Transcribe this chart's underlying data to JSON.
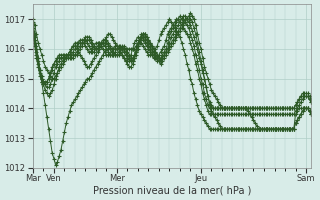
{
  "title": "",
  "xlabel": "Pression niveau de la mer( hPa )",
  "ylim": [
    1012,
    1017.5
  ],
  "yticks": [
    1012,
    1013,
    1014,
    1015,
    1016,
    1017
  ],
  "xtick_labels": [
    "Mar",
    "Ven",
    "Mer",
    "Jeu",
    "Sam"
  ],
  "xtick_positions": [
    0,
    12,
    48,
    96,
    156
  ],
  "bg_color": "#d8ece8",
  "grid_color": "#b0cfc8",
  "line_color": "#2d5a27",
  "total_points": 168,
  "series": [
    [
      1017.0,
      1016.8,
      1016.5,
      1016.2,
      1016.0,
      1015.8,
      1015.6,
      1015.4,
      1015.3,
      1015.2,
      1015.1,
      1015.0,
      1015.0,
      1015.1,
      1015.2,
      1015.3,
      1015.4,
      1015.5,
      1015.6,
      1015.7,
      1015.8,
      1015.9,
      1016.0,
      1016.1,
      1016.1,
      1016.0,
      1015.9,
      1015.8,
      1015.7,
      1015.6,
      1015.5,
      1015.4,
      1015.4,
      1015.5,
      1015.6,
      1015.7,
      1015.8,
      1015.9,
      1016.0,
      1016.1,
      1016.2,
      1016.3,
      1016.4,
      1016.5,
      1016.5,
      1016.4,
      1016.3,
      1016.2,
      1016.1,
      1016.0,
      1015.9,
      1015.8,
      1015.7,
      1015.6,
      1015.5,
      1015.4,
      1015.4,
      1015.5,
      1015.7,
      1015.9,
      1016.1,
      1016.3,
      1016.5,
      1016.5,
      1016.4,
      1016.3,
      1016.2,
      1016.1,
      1016.0,
      1015.9,
      1015.8,
      1015.7,
      1015.6,
      1015.5,
      1015.6,
      1015.7,
      1015.8,
      1015.9,
      1016.0,
      1016.1,
      1016.2,
      1016.3,
      1016.4,
      1016.5,
      1016.6,
      1016.7,
      1016.8,
      1016.9,
      1017.0,
      1017.1,
      1017.2,
      1017.1,
      1017.0,
      1016.8,
      1016.5,
      1016.2,
      1016.0,
      1015.7,
      1015.4,
      1015.2,
      1015.0,
      1014.8,
      1014.6,
      1014.5,
      1014.4,
      1014.3,
      1014.2,
      1014.1,
      1014.0,
      1014.0,
      1014.0,
      1014.0,
      1014.0,
      1014.0,
      1014.0,
      1014.0,
      1014.0,
      1014.0,
      1014.0,
      1014.0,
      1014.0,
      1014.0,
      1014.0,
      1013.9,
      1013.8,
      1013.7,
      1013.6,
      1013.5,
      1013.4,
      1013.3,
      1013.3,
      1013.3,
      1013.3,
      1013.3,
      1013.3,
      1013.3,
      1013.3,
      1013.3,
      1013.3,
      1013.3,
      1013.3,
      1013.3,
      1013.3,
      1013.3,
      1013.3,
      1013.3,
      1013.3,
      1013.3,
      1013.3,
      1013.3,
      1013.8,
      1013.9,
      1014.0,
      1014.0,
      1014.0,
      1014.0,
      1014.0,
      1014.0,
      1013.9,
      1013.8
    ],
    [
      1016.9,
      1016.5,
      1016.1,
      1015.7,
      1015.3,
      1014.9,
      1014.5,
      1014.1,
      1013.7,
      1013.3,
      1012.9,
      1012.5,
      1012.3,
      1012.1,
      1012.2,
      1012.4,
      1012.6,
      1012.9,
      1013.2,
      1013.5,
      1013.7,
      1013.9,
      1014.1,
      1014.2,
      1014.3,
      1014.4,
      1014.5,
      1014.6,
      1014.7,
      1014.8,
      1014.9,
      1015.0,
      1015.0,
      1015.1,
      1015.2,
      1015.3,
      1015.4,
      1015.5,
      1015.6,
      1015.7,
      1015.8,
      1015.9,
      1016.0,
      1016.0,
      1016.0,
      1016.0,
      1016.0,
      1016.0,
      1016.0,
      1016.0,
      1016.0,
      1016.0,
      1016.0,
      1016.0,
      1016.0,
      1016.0,
      1016.0,
      1016.0,
      1016.0,
      1016.1,
      1016.2,
      1016.3,
      1016.4,
      1016.5,
      1016.5,
      1016.4,
      1016.3,
      1016.2,
      1016.1,
      1016.0,
      1015.9,
      1015.8,
      1015.7,
      1015.6,
      1015.7,
      1015.8,
      1015.9,
      1016.0,
      1016.1,
      1016.2,
      1016.3,
      1016.4,
      1016.5,
      1016.6,
      1016.7,
      1016.8,
      1016.9,
      1017.0,
      1017.0,
      1017.0,
      1017.0,
      1016.9,
      1016.7,
      1016.5,
      1016.2,
      1015.9,
      1015.6,
      1015.3,
      1015.0,
      1014.7,
      1014.4,
      1014.1,
      1013.9,
      1013.8,
      1013.7,
      1013.6,
      1013.5,
      1013.4,
      1013.3,
      1013.3,
      1013.3,
      1013.3,
      1013.3,
      1013.3,
      1013.3,
      1013.3,
      1013.3,
      1013.3,
      1013.3,
      1013.3,
      1013.3,
      1013.3,
      1013.3,
      1013.3,
      1013.3,
      1013.3,
      1013.3,
      1013.3,
      1013.3,
      1013.3,
      1013.3,
      1013.3,
      1013.3,
      1013.3,
      1013.3,
      1013.3,
      1013.3,
      1013.3,
      1013.3,
      1013.3,
      1013.3,
      1013.3,
      1013.3,
      1013.3,
      1013.3,
      1013.3,
      1013.3,
      1013.3,
      1013.3,
      1013.3,
      1013.5,
      1013.6,
      1013.7,
      1013.8,
      1013.9,
      1014.0,
      1014.0,
      1014.0,
      1013.9,
      1013.8
    ],
    [
      1016.8,
      1016.4,
      1016.0,
      1015.7,
      1015.3,
      1015.0,
      1014.8,
      1014.6,
      1014.5,
      1014.4,
      1014.5,
      1014.6,
      1014.8,
      1015.0,
      1015.2,
      1015.4,
      1015.5,
      1015.6,
      1015.7,
      1015.8,
      1015.8,
      1015.8,
      1015.8,
      1015.8,
      1015.8,
      1015.8,
      1015.9,
      1016.0,
      1016.1,
      1016.2,
      1016.3,
      1016.3,
      1016.3,
      1016.2,
      1016.1,
      1016.0,
      1016.0,
      1016.0,
      1016.1,
      1016.2,
      1016.3,
      1016.3,
      1016.3,
      1016.2,
      1016.1,
      1016.0,
      1015.9,
      1015.8,
      1015.8,
      1015.8,
      1015.9,
      1016.0,
      1016.1,
      1016.0,
      1015.9,
      1015.8,
      1015.7,
      1015.6,
      1015.7,
      1015.8,
      1016.0,
      1016.2,
      1016.4,
      1016.5,
      1016.5,
      1016.4,
      1016.3,
      1016.2,
      1016.1,
      1016.0,
      1015.9,
      1015.8,
      1015.7,
      1015.6,
      1015.7,
      1015.8,
      1015.9,
      1016.0,
      1016.2,
      1016.4,
      1016.5,
      1016.6,
      1016.7,
      1016.8,
      1016.9,
      1017.0,
      1017.1,
      1017.1,
      1017.0,
      1016.9,
      1016.8,
      1016.6,
      1016.4,
      1016.2,
      1016.0,
      1015.7,
      1015.5,
      1015.2,
      1015.0,
      1014.7,
      1014.4,
      1014.2,
      1014.1,
      1014.0,
      1014.0,
      1014.0,
      1014.0,
      1014.0,
      1014.0,
      1014.0,
      1014.0,
      1014.0,
      1014.0,
      1014.0,
      1014.0,
      1014.0,
      1014.0,
      1014.0,
      1014.0,
      1014.0,
      1014.0,
      1014.0,
      1014.0,
      1014.0,
      1014.0,
      1014.0,
      1014.0,
      1014.0,
      1014.0,
      1014.0,
      1014.0,
      1014.0,
      1014.0,
      1014.0,
      1014.0,
      1014.0,
      1014.0,
      1014.0,
      1014.0,
      1014.0,
      1014.0,
      1014.0,
      1014.0,
      1014.0,
      1014.0,
      1014.0,
      1014.0,
      1014.0,
      1014.0,
      1014.0,
      1014.1,
      1014.2,
      1014.3,
      1014.4,
      1014.4,
      1014.4,
      1014.4,
      1014.4,
      1014.3,
      1014.2
    ],
    [
      1016.7,
      1016.3,
      1015.9,
      1015.6,
      1015.3,
      1015.1,
      1014.9,
      1014.8,
      1014.7,
      1014.7,
      1014.8,
      1015.0,
      1015.2,
      1015.4,
      1015.5,
      1015.6,
      1015.7,
      1015.7,
      1015.7,
      1015.7,
      1015.7,
      1015.7,
      1015.7,
      1015.7,
      1015.8,
      1015.9,
      1016.0,
      1016.1,
      1016.2,
      1016.3,
      1016.4,
      1016.4,
      1016.4,
      1016.3,
      1016.2,
      1016.1,
      1016.0,
      1016.0,
      1016.0,
      1016.1,
      1016.2,
      1016.2,
      1016.2,
      1016.1,
      1016.0,
      1015.9,
      1015.8,
      1015.8,
      1015.8,
      1015.9,
      1016.0,
      1016.1,
      1016.0,
      1015.9,
      1015.8,
      1015.7,
      1015.6,
      1015.6,
      1015.7,
      1015.9,
      1016.1,
      1016.3,
      1016.4,
      1016.4,
      1016.3,
      1016.2,
      1016.1,
      1016.0,
      1015.9,
      1015.8,
      1015.7,
      1015.6,
      1015.6,
      1015.7,
      1015.8,
      1015.9,
      1016.0,
      1016.2,
      1016.4,
      1016.6,
      1016.7,
      1016.8,
      1016.9,
      1017.0,
      1017.1,
      1017.0,
      1017.0,
      1016.9,
      1016.8,
      1016.7,
      1016.5,
      1016.3,
      1016.1,
      1015.8,
      1015.6,
      1015.3,
      1015.0,
      1014.8,
      1014.5,
      1014.3,
      1014.1,
      1014.0,
      1014.0,
      1014.0,
      1014.0,
      1014.0,
      1014.0,
      1014.0,
      1014.0,
      1014.0,
      1014.0,
      1014.0,
      1014.0,
      1014.0,
      1014.0,
      1014.0,
      1014.0,
      1014.0,
      1014.0,
      1014.0,
      1014.0,
      1014.0,
      1014.0,
      1014.0,
      1014.0,
      1014.0,
      1014.0,
      1014.0,
      1014.0,
      1014.0,
      1014.0,
      1014.0,
      1014.0,
      1014.0,
      1014.0,
      1014.0,
      1014.0,
      1014.0,
      1014.0,
      1014.0,
      1014.0,
      1014.0,
      1014.0,
      1014.0,
      1014.0,
      1014.0,
      1014.0,
      1014.0,
      1014.0,
      1014.0,
      1014.1,
      1014.2,
      1014.3,
      1014.4,
      1014.5,
      1014.5,
      1014.5,
      1014.5,
      1014.4,
      1014.3
    ],
    [
      1016.6,
      1016.2,
      1015.8,
      1015.5,
      1015.2,
      1015.0,
      1014.9,
      1014.9,
      1014.9,
      1015.0,
      1015.1,
      1015.3,
      1015.5,
      1015.6,
      1015.7,
      1015.8,
      1015.8,
      1015.8,
      1015.8,
      1015.8,
      1015.8,
      1015.8,
      1015.8,
      1015.9,
      1016.0,
      1016.1,
      1016.2,
      1016.3,
      1016.3,
      1016.3,
      1016.3,
      1016.2,
      1016.1,
      1016.0,
      1015.9,
      1015.9,
      1016.0,
      1016.1,
      1016.2,
      1016.2,
      1016.2,
      1016.1,
      1016.0,
      1015.9,
      1015.8,
      1015.8,
      1015.8,
      1015.9,
      1016.0,
      1016.1,
      1016.1,
      1016.0,
      1015.9,
      1015.8,
      1015.7,
      1015.6,
      1015.6,
      1015.7,
      1015.8,
      1016.0,
      1016.2,
      1016.3,
      1016.4,
      1016.3,
      1016.2,
      1016.1,
      1016.0,
      1015.9,
      1015.8,
      1015.7,
      1015.7,
      1015.7,
      1015.8,
      1015.9,
      1016.0,
      1016.1,
      1016.3,
      1016.5,
      1016.6,
      1016.7,
      1016.8,
      1016.9,
      1017.0,
      1017.0,
      1016.9,
      1016.8,
      1016.7,
      1016.6,
      1016.5,
      1016.4,
      1016.2,
      1016.0,
      1015.8,
      1015.5,
      1015.3,
      1015.0,
      1014.8,
      1014.5,
      1014.3,
      1014.1,
      1013.9,
      1013.8,
      1013.8,
      1013.8,
      1013.8,
      1013.8,
      1013.8,
      1013.8,
      1013.8,
      1013.8,
      1013.8,
      1013.8,
      1013.8,
      1013.8,
      1013.8,
      1013.8,
      1013.8,
      1013.8,
      1013.8,
      1013.8,
      1013.8,
      1013.8,
      1013.8,
      1013.8,
      1013.8,
      1013.8,
      1013.8,
      1013.8,
      1013.8,
      1013.8,
      1013.8,
      1013.8,
      1013.8,
      1013.8,
      1013.8,
      1013.8,
      1013.8,
      1013.8,
      1013.8,
      1013.8,
      1013.8,
      1013.8,
      1013.8,
      1013.8,
      1013.8,
      1013.8,
      1013.8,
      1013.8,
      1013.8,
      1013.8,
      1013.9,
      1014.0,
      1014.1,
      1014.2,
      1014.3,
      1014.4,
      1014.4,
      1014.4,
      1014.3,
      1014.2
    ],
    [
      1016.5,
      1016.1,
      1015.7,
      1015.4,
      1015.1,
      1014.9,
      1014.8,
      1014.8,
      1014.9,
      1015.0,
      1015.2,
      1015.4,
      1015.5,
      1015.6,
      1015.7,
      1015.7,
      1015.7,
      1015.7,
      1015.7,
      1015.7,
      1015.8,
      1015.9,
      1016.0,
      1016.1,
      1016.2,
      1016.2,
      1016.2,
      1016.2,
      1016.2,
      1016.2,
      1016.1,
      1016.0,
      1015.9,
      1015.9,
      1016.0,
      1016.1,
      1016.2,
      1016.2,
      1016.2,
      1016.1,
      1016.0,
      1015.9,
      1015.8,
      1015.8,
      1015.8,
      1015.9,
      1016.0,
      1016.1,
      1016.1,
      1016.0,
      1015.9,
      1015.8,
      1015.7,
      1015.6,
      1015.6,
      1015.7,
      1015.8,
      1016.0,
      1016.2,
      1016.3,
      1016.4,
      1016.3,
      1016.2,
      1016.1,
      1016.0,
      1015.9,
      1015.8,
      1015.8,
      1015.8,
      1015.9,
      1016.0,
      1016.1,
      1016.3,
      1016.5,
      1016.6,
      1016.7,
      1016.8,
      1016.9,
      1017.0,
      1016.9,
      1016.8,
      1016.7,
      1016.6,
      1016.5,
      1016.4,
      1016.2,
      1016.0,
      1015.8,
      1015.5,
      1015.3,
      1015.0,
      1014.8,
      1014.5,
      1014.3,
      1014.1,
      1013.9,
      1013.8,
      1013.7,
      1013.6,
      1013.5,
      1013.4,
      1013.3,
      1013.3,
      1013.3,
      1013.3,
      1013.3,
      1013.3,
      1013.3,
      1013.3,
      1013.3,
      1013.3,
      1013.3,
      1013.3,
      1013.3,
      1013.3,
      1013.3,
      1013.3,
      1013.3,
      1013.3,
      1013.3,
      1013.3,
      1013.3,
      1013.3,
      1013.3,
      1013.3,
      1013.3,
      1013.3,
      1013.3,
      1013.3,
      1013.3,
      1013.3,
      1013.3,
      1013.3,
      1013.3,
      1013.3,
      1013.3,
      1013.3,
      1013.3,
      1013.3,
      1013.3,
      1013.3,
      1013.3,
      1013.3,
      1013.3,
      1013.3,
      1013.3,
      1013.3,
      1013.3,
      1013.3,
      1013.3,
      1013.5,
      1013.6,
      1013.7,
      1013.8,
      1013.9,
      1014.0,
      1014.0,
      1014.0,
      1013.9,
      1013.8
    ]
  ]
}
